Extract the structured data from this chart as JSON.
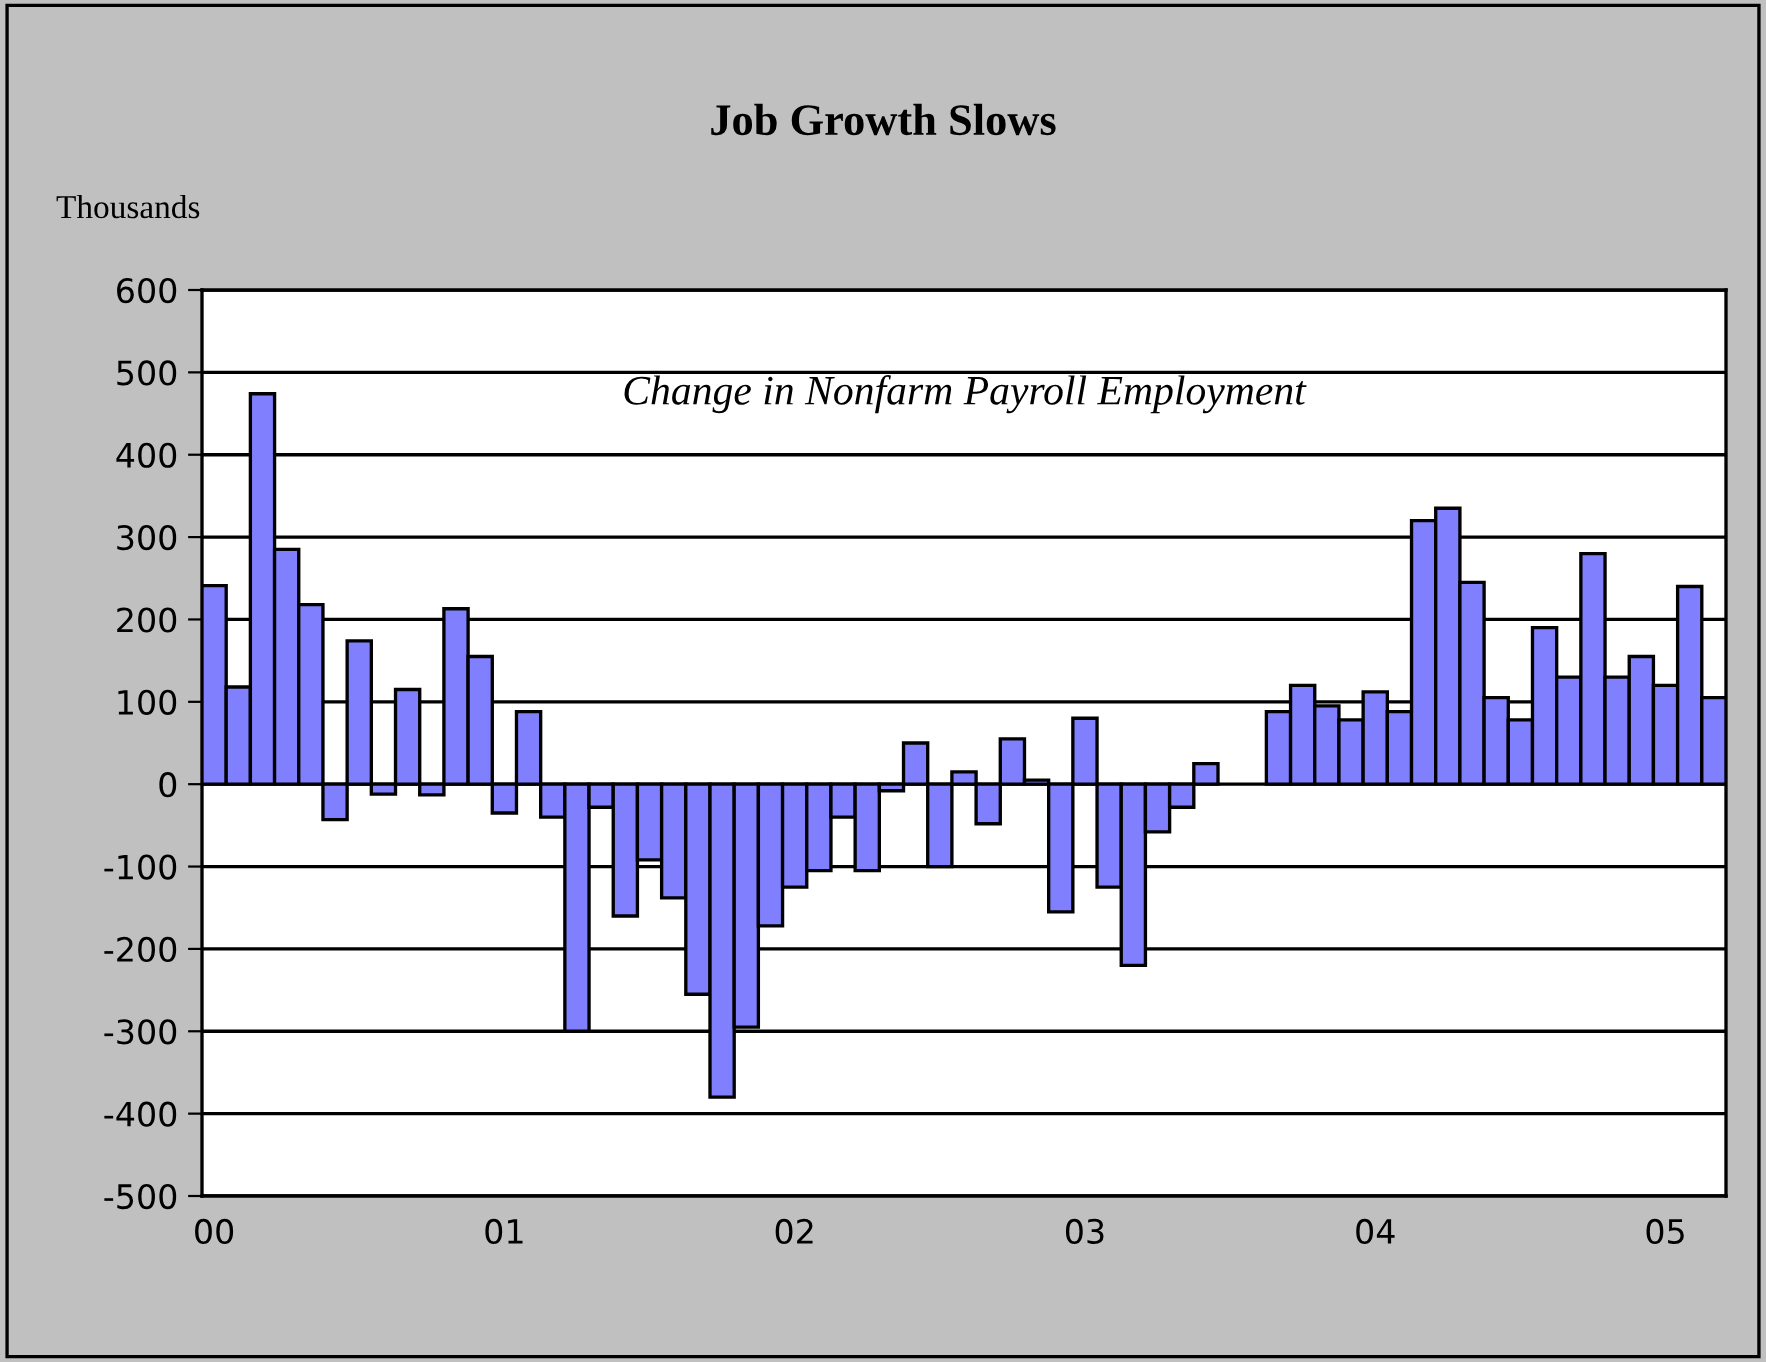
{
  "chart_data": {
    "type": "bar",
    "title": "Job Growth Slows",
    "ylabel": "Thousands",
    "annotations": [
      "Change in Nonfarm Payroll Employment"
    ],
    "categories": [
      "00",
      null,
      null,
      null,
      null,
      null,
      null,
      null,
      null,
      null,
      null,
      null,
      "01",
      null,
      null,
      null,
      null,
      null,
      null,
      null,
      null,
      null,
      null,
      null,
      "02",
      null,
      null,
      null,
      null,
      null,
      null,
      null,
      null,
      null,
      null,
      null,
      "03",
      null,
      null,
      null,
      null,
      null,
      null,
      null,
      null,
      null,
      null,
      null,
      "04",
      null,
      null,
      null,
      null,
      null,
      null,
      null,
      null,
      null,
      null,
      null,
      "05",
      null,
      null
    ],
    "values": [
      241,
      118,
      474,
      285,
      218,
      -43,
      174,
      -12,
      115,
      -13,
      213,
      155,
      -35,
      88,
      -40,
      -300,
      -28,
      -160,
      -92,
      -138,
      -255,
      -380,
      -295,
      -172,
      -125,
      -105,
      -40,
      -105,
      -8,
      50,
      -100,
      15,
      -48,
      55,
      5,
      -155,
      80,
      -125,
      -220,
      -58,
      -28,
      25,
      null,
      null,
      88,
      120,
      95,
      78,
      112,
      88,
      320,
      335,
      245,
      105,
      78,
      190,
      130,
      280,
      130,
      155,
      120,
      240,
      105
    ],
    "color": "#8080ff",
    "ylim": [
      -500,
      600
    ],
    "yticks": [
      -500,
      -400,
      -300,
      -200,
      -100,
      0,
      100,
      200,
      300,
      400,
      500,
      600
    ],
    "grid": "y"
  }
}
